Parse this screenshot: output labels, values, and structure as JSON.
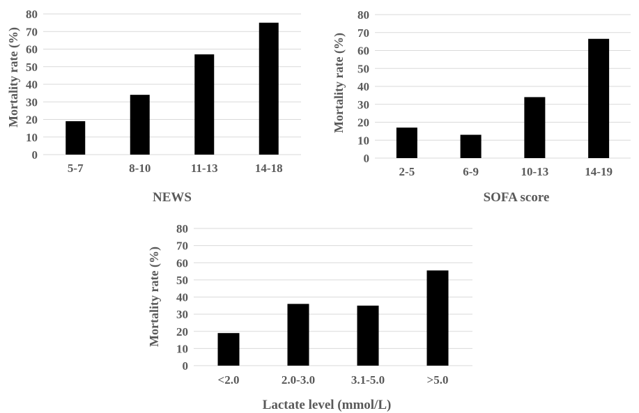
{
  "chart_data": [
    {
      "type": "bar",
      "categories": [
        "5-7",
        "8-10",
        "11-13",
        "14-18"
      ],
      "values": [
        19,
        34,
        57,
        75
      ],
      "xlabel": "NEWS",
      "ylabel": "Mortality rate (%)",
      "ylim": [
        0,
        80
      ],
      "yticks": [
        0,
        10,
        20,
        30,
        40,
        50,
        60,
        70,
        80
      ],
      "ytick_labels": [
        "0",
        "10",
        "20",
        "30",
        "40",
        "50",
        "60",
        "70",
        "80"
      ],
      "grid": true,
      "bar_color": "#000000"
    },
    {
      "type": "bar",
      "categories": [
        "2-5",
        "6-9",
        "10-13",
        "14-19"
      ],
      "values": [
        17,
        13,
        34,
        66.5
      ],
      "xlabel": "SOFA score",
      "ylabel": "Mortality rate (%)",
      "ylim": [
        0,
        80
      ],
      "yticks": [
        0,
        10,
        20,
        30,
        40,
        50,
        60,
        70,
        80
      ],
      "ytick_labels": [
        "0",
        "10",
        "20",
        "30",
        "40",
        "50",
        "60",
        "70",
        "80"
      ],
      "grid": true,
      "bar_color": "#000000"
    },
    {
      "type": "bar",
      "categories": [
        "<2.0",
        "2.0-3.0",
        "3.1-5.0",
        ">5.0"
      ],
      "values": [
        19,
        36,
        35,
        55.5
      ],
      "xlabel": "Lactate level (mmol/L)",
      "ylabel": "Mortality rate (%)",
      "ylim": [
        0,
        80
      ],
      "yticks": [
        0,
        10,
        20,
        30,
        40,
        50,
        60,
        70,
        80
      ],
      "ytick_labels": [
        "0",
        "10",
        "20",
        "30",
        "40",
        "50",
        "60",
        "70",
        "80"
      ],
      "grid": true,
      "bar_color": "#000000"
    }
  ]
}
